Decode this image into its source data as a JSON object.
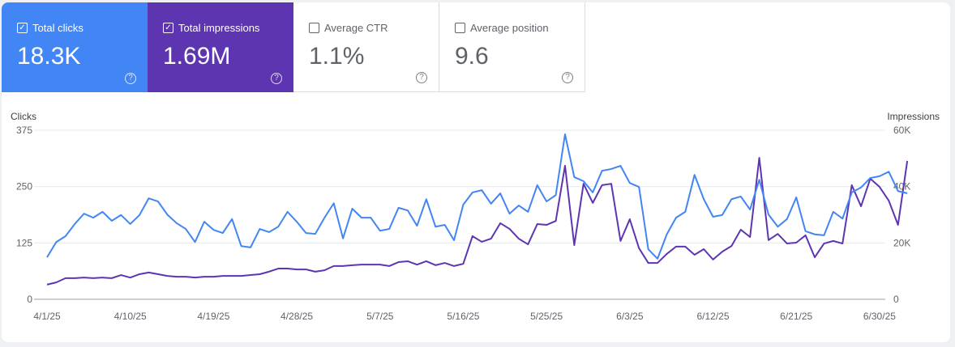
{
  "metrics": [
    {
      "label": "Total clicks",
      "value": "18.3K",
      "checked": true
    },
    {
      "label": "Total impressions",
      "value": "1.69M",
      "checked": true
    },
    {
      "label": "Average CTR",
      "value": "1.1%",
      "checked": false
    },
    {
      "label": "Average position",
      "value": "9.6",
      "checked": false
    }
  ],
  "icons": {
    "checked": "✓",
    "help": "?"
  },
  "colors": {
    "clicks": "#4285f4",
    "impressions": "#5e35b1"
  },
  "chart_data": {
    "type": "line",
    "left_axis_title": "Clicks",
    "right_axis_title": "Impressions",
    "left_ticks": [
      "0",
      "125",
      "250",
      "375"
    ],
    "left_range": [
      0,
      375
    ],
    "right_ticks": [
      "0",
      "20K",
      "40K",
      "60K"
    ],
    "right_range": [
      0,
      60000
    ],
    "x_start": "4/1/25",
    "x_tick_labels": [
      "4/1/25",
      "4/10/25",
      "4/19/25",
      "4/28/25",
      "5/7/25",
      "5/16/25",
      "5/25/25",
      "6/3/25",
      "6/12/25",
      "6/21/25",
      "6/30/25"
    ],
    "x_tick_every_days": 9,
    "grid": true,
    "series": [
      {
        "name": "Clicks",
        "axis": "left",
        "values": [
          93,
          127,
          140,
          167,
          190,
          181,
          194,
          174,
          187,
          167,
          187,
          224,
          217,
          188,
          169,
          156,
          127,
          172,
          154,
          147,
          178,
          118,
          115,
          156,
          149,
          161,
          194,
          172,
          147,
          145,
          181,
          213,
          135,
          201,
          181,
          181,
          152,
          156,
          203,
          197,
          163,
          222,
          161,
          165,
          131,
          210,
          237,
          242,
          212,
          235,
          190,
          208,
          194,
          253,
          217,
          231,
          366,
          271,
          262,
          237,
          285,
          289,
          296,
          258,
          249,
          111,
          90,
          144,
          181,
          194,
          276,
          222,
          183,
          187,
          222,
          228,
          199,
          265,
          188,
          161,
          178,
          226,
          151,
          144,
          142,
          194,
          179,
          237,
          248,
          269,
          273,
          283,
          240,
          235
        ]
      },
      {
        "name": "Impressions",
        "axis": "right",
        "values": [
          5200,
          6000,
          7500,
          7500,
          7700,
          7500,
          7700,
          7500,
          8600,
          7700,
          8900,
          9500,
          8900,
          8300,
          8000,
          8000,
          7700,
          8000,
          8000,
          8300,
          8300,
          8300,
          8600,
          8900,
          9800,
          10900,
          10900,
          10600,
          10600,
          9800,
          10300,
          11800,
          11800,
          12100,
          12300,
          12300,
          12300,
          11800,
          13200,
          13500,
          12300,
          13500,
          12100,
          12900,
          11800,
          12600,
          22400,
          20400,
          21500,
          27000,
          25000,
          21500,
          19500,
          26700,
          26400,
          27800,
          47400,
          19200,
          41000,
          34200,
          40500,
          41000,
          20700,
          28400,
          18100,
          12900,
          12900,
          16100,
          18700,
          18700,
          15800,
          17800,
          14100,
          16900,
          18900,
          24700,
          22100,
          50200,
          21000,
          23200,
          19800,
          20100,
          22700,
          14900,
          19800,
          20700,
          19800,
          40500,
          33000,
          42800,
          39900,
          35000,
          26400,
          49100
        ]
      }
    ]
  }
}
